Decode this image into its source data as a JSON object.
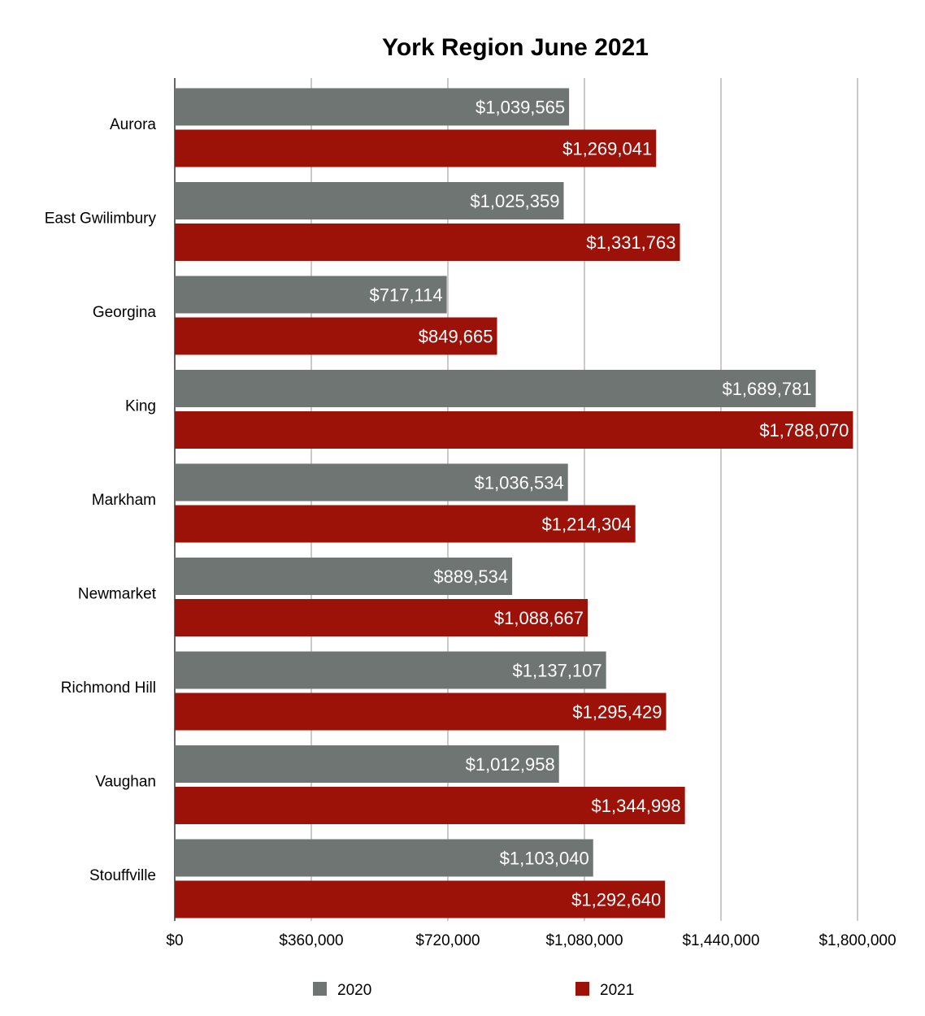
{
  "chart_data": {
    "type": "bar",
    "orientation": "horizontal",
    "title": "York Region June 2021",
    "xlabel": "",
    "ylabel": "",
    "categories": [
      "Aurora",
      "East Gwilimbury",
      "Georgina",
      "King",
      "Markham",
      "Newmarket",
      "Richmond Hill",
      "Vaughan",
      "Stouffville"
    ],
    "series": [
      {
        "name": "2020",
        "color": "#6f7572",
        "values": [
          1039565,
          1025359,
          717114,
          1689781,
          1036534,
          889534,
          1137107,
          1012958,
          1103040
        ],
        "labels": [
          "$1,039,565",
          "$1,025,359",
          "$717,114",
          "$1,689,781",
          "$1,036,534",
          "$889,534",
          "$1,137,107",
          "$1,012,958",
          "$1,103,040"
        ]
      },
      {
        "name": "2021",
        "color": "#9c1208",
        "values": [
          1269041,
          1331763,
          849665,
          1788070,
          1214304,
          1088667,
          1295429,
          1344998,
          1292640
        ],
        "labels": [
          "$1,269,041",
          "$1,331,763",
          "$849,665",
          "$1,788,070",
          "$1,214,304",
          "$1,088,667",
          "$1,295,429",
          "$1,344,998",
          "$1,292,640"
        ]
      }
    ],
    "xlim": [
      0,
      1800000
    ],
    "xticks": [
      0,
      360000,
      720000,
      1080000,
      1440000,
      1800000
    ],
    "xtick_labels": [
      "$0",
      "$360,000",
      "$720,000",
      "$1,080,000",
      "$1,440,000",
      "$1,800,000"
    ],
    "grid": true,
    "legend_position": "bottom"
  }
}
